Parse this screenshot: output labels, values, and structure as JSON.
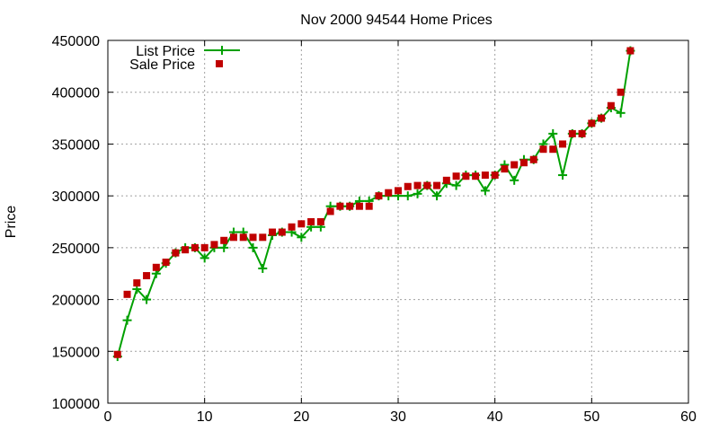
{
  "chart_data": {
    "type": "line",
    "title": "Nov 2000 94544 Home Prices",
    "xlabel": "",
    "ylabel": "Price",
    "xlim": [
      0,
      60
    ],
    "ylim": [
      100000,
      450000
    ],
    "x_ticks": [
      0,
      10,
      20,
      30,
      40,
      50,
      60
    ],
    "y_ticks": [
      100000,
      150000,
      200000,
      250000,
      300000,
      350000,
      400000,
      450000
    ],
    "grid": true,
    "legend_position": "top-left",
    "series": [
      {
        "name": "List Price",
        "style": "lines with plus markers",
        "color": "#00a000",
        "x": [
          1,
          2,
          3,
          4,
          5,
          6,
          7,
          8,
          9,
          10,
          11,
          12,
          13,
          14,
          15,
          16,
          17,
          18,
          19,
          20,
          21,
          22,
          23,
          24,
          25,
          26,
          27,
          28,
          29,
          30,
          31,
          32,
          33,
          34,
          35,
          36,
          37,
          38,
          39,
          40,
          41,
          42,
          43,
          44,
          45,
          46,
          47,
          48,
          49,
          50,
          51,
          52,
          53,
          54
        ],
        "values": [
          145000,
          180000,
          210000,
          200000,
          225000,
          235000,
          245000,
          250000,
          250000,
          240000,
          250000,
          250000,
          265000,
          265000,
          250000,
          230000,
          262000,
          265000,
          265000,
          260000,
          270000,
          270000,
          290000,
          290000,
          290000,
          295000,
          295000,
          300000,
          300000,
          300000,
          300000,
          302000,
          310000,
          300000,
          312000,
          310000,
          320000,
          320000,
          305000,
          320000,
          330000,
          315000,
          335000,
          335000,
          350000,
          360000,
          320000,
          360000,
          360000,
          370000,
          375000,
          385000,
          380000,
          440000
        ]
      },
      {
        "name": "Sale Price",
        "style": "square points",
        "color": "#c00000",
        "x": [
          1,
          2,
          3,
          4,
          5,
          6,
          7,
          8,
          9,
          10,
          11,
          12,
          13,
          14,
          15,
          16,
          17,
          18,
          19,
          20,
          21,
          22,
          23,
          24,
          25,
          26,
          27,
          28,
          29,
          30,
          31,
          32,
          33,
          34,
          35,
          36,
          37,
          38,
          39,
          40,
          41,
          42,
          43,
          44,
          45,
          46,
          47,
          48,
          49,
          50,
          51,
          52,
          53,
          54
        ],
        "values": [
          147000,
          205000,
          216000,
          223000,
          231000,
          236000,
          245000,
          248000,
          250000,
          250000,
          253000,
          257000,
          260000,
          260000,
          260000,
          260000,
          265000,
          265000,
          270000,
          273000,
          275000,
          275000,
          285000,
          290000,
          290000,
          290000,
          290000,
          300000,
          303000,
          305000,
          309000,
          310000,
          310000,
          310000,
          315000,
          319000,
          319000,
          319000,
          320000,
          320000,
          326000,
          330000,
          332000,
          335000,
          345000,
          345000,
          350000,
          360000,
          360000,
          370000,
          375000,
          387000,
          400000,
          440000
        ]
      }
    ]
  }
}
